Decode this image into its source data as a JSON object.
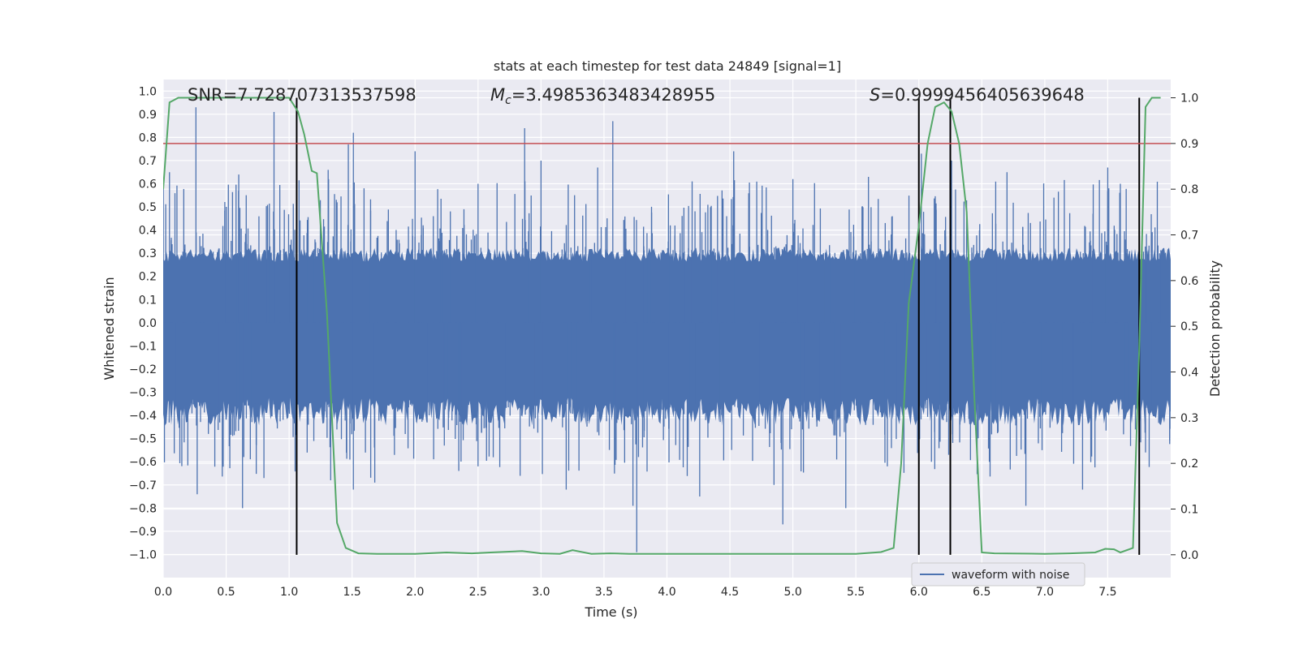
{
  "chart_data": {
    "type": "line",
    "title": "stats at each timestep for test data 24849 [signal=1]",
    "xlabel": "Time (s)",
    "ylabel": "Whitened strain",
    "y2label": "Detection probability",
    "xlim": [
      0,
      8
    ],
    "ylim": [
      -1.1,
      1.05
    ],
    "y2lim": [
      -0.05,
      1.04
    ],
    "x_ticks": [
      0.0,
      0.5,
      1.0,
      1.5,
      2.0,
      2.5,
      3.0,
      3.5,
      4.0,
      4.5,
      5.0,
      5.5,
      6.0,
      6.5,
      7.0,
      7.5
    ],
    "y_ticks": [
      1.0,
      0.9,
      0.8,
      0.7,
      0.6,
      0.5,
      0.4,
      0.3,
      0.2,
      0.1,
      0.0,
      -0.1,
      -0.2,
      -0.3,
      -0.4,
      -0.5,
      -0.6,
      -0.7,
      -0.8,
      -0.9,
      -1.0
    ],
    "y2_ticks": [
      1.0,
      0.9,
      0.8,
      0.7,
      0.6,
      0.5,
      0.4,
      0.3,
      0.2,
      0.1,
      0.0
    ],
    "grid": true,
    "annotations": {
      "snr": "SNR=7.728707313537598",
      "mc_symbol": "M",
      "mc_sub": "c",
      "mc_value": "=3.4985363483428955",
      "s_symbol": "S",
      "s_value": "=0.9999456405639648"
    },
    "threshold": {
      "axis": "right",
      "value": 0.9,
      "color": "#c44e52"
    },
    "vertical_lines": [
      1.06,
      6.0,
      6.25,
      7.75
    ],
    "waveform": {
      "name": "waveform with noise",
      "color": "#4c72b0",
      "core_amplitude": 0.3,
      "peak_spikes": [
        [
          0.26,
          0.93
        ],
        [
          0.88,
          0.91
        ],
        [
          1.51,
          0.82
        ],
        [
          1.47,
          0.77
        ],
        [
          2.87,
          0.84
        ],
        [
          3.57,
          0.87
        ],
        [
          2.0,
          0.74
        ],
        [
          4.53,
          0.74
        ],
        [
          6.02,
          0.73
        ],
        [
          6.26,
          0.7
        ],
        [
          1.31,
          0.66
        ],
        [
          0.05,
          0.65
        ],
        [
          0.6,
          0.64
        ],
        [
          3.0,
          0.7
        ],
        [
          3.45,
          0.67
        ],
        [
          7.5,
          0.67
        ],
        [
          5.0,
          0.62
        ],
        [
          4.2,
          0.61
        ],
        [
          6.7,
          0.65
        ],
        [
          7.6,
          0.6
        ],
        [
          2.5,
          0.6
        ],
        [
          5.6,
          0.63
        ]
      ],
      "trough_spikes": [
        [
          3.76,
          -0.99
        ],
        [
          3.73,
          -0.79
        ],
        [
          4.92,
          -0.87
        ],
        [
          5.42,
          -0.8
        ],
        [
          6.85,
          -0.79
        ],
        [
          4.26,
          -0.75
        ],
        [
          0.27,
          -0.74
        ],
        [
          0.63,
          -0.8
        ],
        [
          3.2,
          -0.72
        ],
        [
          1.33,
          -0.68
        ],
        [
          1.51,
          -0.72
        ],
        [
          1.68,
          -0.69
        ],
        [
          7.3,
          -0.72
        ],
        [
          6.56,
          -0.6
        ],
        [
          4.85,
          -0.7
        ],
        [
          2.5,
          -0.62
        ],
        [
          0.8,
          -0.67
        ],
        [
          5.75,
          -0.62
        ],
        [
          7.8,
          -0.56
        ],
        [
          6.1,
          -0.6
        ]
      ]
    },
    "probability": {
      "name": "detection probability",
      "color": "#55a868",
      "x": [
        0.0,
        0.05,
        0.12,
        0.2,
        0.5,
        0.8,
        1.0,
        1.07,
        1.12,
        1.18,
        1.22,
        1.3,
        1.38,
        1.45,
        1.55,
        1.7,
        2.0,
        2.25,
        2.45,
        2.6,
        2.85,
        3.0,
        3.15,
        3.25,
        3.4,
        3.55,
        3.7,
        4.0,
        4.5,
        5.0,
        5.5,
        5.7,
        5.8,
        5.86,
        5.92,
        6.0,
        6.07,
        6.13,
        6.2,
        6.26,
        6.32,
        6.38,
        6.44,
        6.5,
        6.6,
        7.0,
        7.2,
        7.4,
        7.48,
        7.55,
        7.6,
        7.7,
        7.75,
        7.8,
        7.85,
        7.92
      ],
      "y": [
        0.8,
        0.99,
        1.0,
        1.0,
        1.0,
        1.0,
        1.0,
        0.97,
        0.92,
        0.84,
        0.835,
        0.53,
        0.07,
        0.015,
        0.003,
        0.002,
        0.002,
        0.005,
        0.003,
        0.005,
        0.008,
        0.003,
        0.002,
        0.01,
        0.002,
        0.003,
        0.002,
        0.002,
        0.002,
        0.002,
        0.002,
        0.006,
        0.015,
        0.2,
        0.55,
        0.72,
        0.9,
        0.98,
        0.99,
        0.97,
        0.9,
        0.75,
        0.35,
        0.005,
        0.003,
        0.002,
        0.003,
        0.005,
        0.013,
        0.012,
        0.005,
        0.015,
        0.45,
        0.98,
        1.0,
        1.0
      ]
    },
    "legend": {
      "label": "waveform with noise",
      "position": "lower-right"
    }
  }
}
